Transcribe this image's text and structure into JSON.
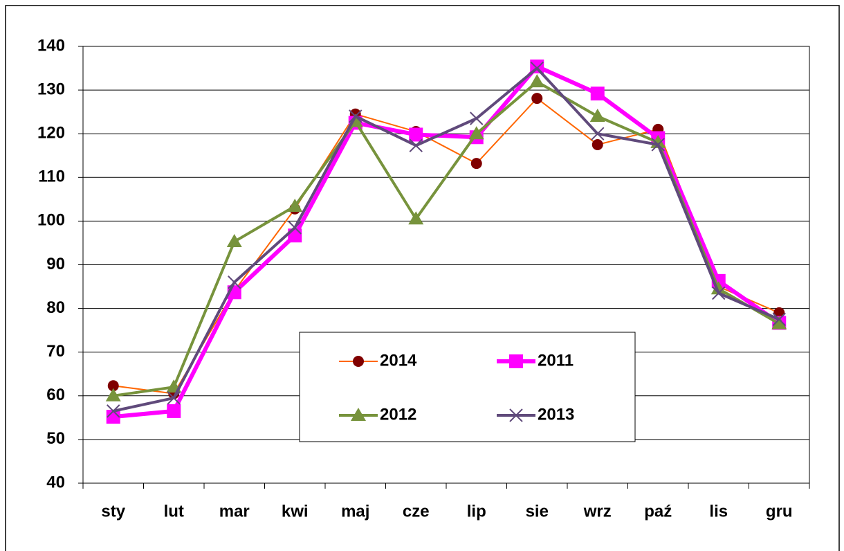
{
  "chart_data": {
    "type": "line",
    "categories": [
      "sty",
      "lut",
      "mar",
      "kwi",
      "maj",
      "cze",
      "lip",
      "sie",
      "wrz",
      "paź",
      "lis",
      "gru"
    ],
    "series": [
      {
        "name": "2014",
        "color": "#ff6600",
        "marker_color": "#800000",
        "marker": "circle",
        "values": [
          62.3,
          60.5,
          84,
          102.8,
          124.5,
          120.5,
          113.2,
          128.1,
          117.5,
          121,
          85,
          79
        ]
      },
      {
        "name": "2011",
        "color": "#ff00ff",
        "marker_color": "#ff00ff",
        "marker": "square",
        "values": [
          55.2,
          56.5,
          83.7,
          96.7,
          122.5,
          119.8,
          119.2,
          135.4,
          129.2,
          119,
          86.3,
          76.7
        ]
      },
      {
        "name": "2012",
        "color": "#77933c",
        "marker_color": "#77933c",
        "marker": "triangle",
        "values": [
          60,
          62,
          95.3,
          103.4,
          122.8,
          100.5,
          120,
          131.9,
          124,
          118,
          84.5,
          76.5
        ]
      },
      {
        "name": "2013",
        "color": "#604a7b",
        "marker_color": "#604a7b",
        "marker": "x",
        "values": [
          56.5,
          59.5,
          86,
          98.5,
          124,
          117.3,
          123.5,
          135,
          120,
          117.5,
          83.5,
          77.5
        ]
      }
    ],
    "ylim": [
      40,
      140
    ],
    "yticks": [
      40,
      50,
      60,
      70,
      80,
      90,
      100,
      110,
      120,
      130,
      140
    ],
    "grid": true
  }
}
